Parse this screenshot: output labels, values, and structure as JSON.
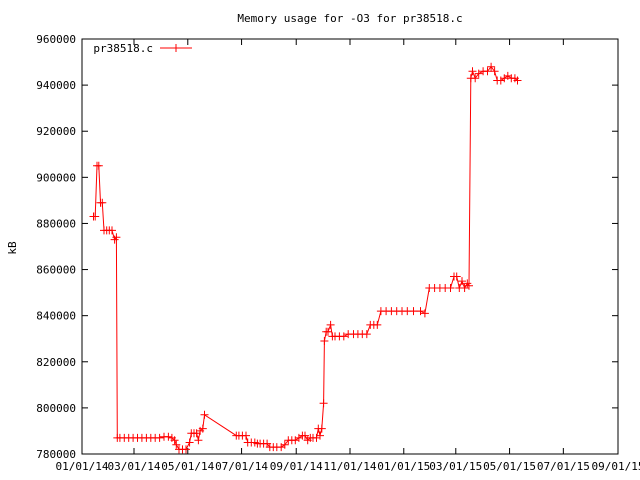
{
  "chart_data": {
    "type": "line",
    "title": "Memory usage for -O3 for pr38518.c",
    "xlabel": "",
    "ylabel": "kB",
    "ylim": [
      780000,
      960000
    ],
    "yticks": [
      780000,
      800000,
      820000,
      840000,
      860000,
      880000,
      900000,
      920000,
      940000,
      960000
    ],
    "ytick_labels": [
      "780000",
      "800000",
      "820000",
      "840000",
      "860000",
      "880000",
      "900000",
      "920000",
      "940000",
      "960000"
    ],
    "xlim": [
      "2014-01-01",
      "2015-09-01"
    ],
    "xticks": [
      "2014-01-01",
      "2014-03-01",
      "2014-05-01",
      "2014-07-01",
      "2014-09-01",
      "2014-11-01",
      "2015-01-01",
      "2015-03-01",
      "2015-05-01",
      "2015-07-01",
      "2015-09-01"
    ],
    "xtick_labels": [
      "01/01/14",
      "03/01/14",
      "05/01/14",
      "07/01/14",
      "09/01/14",
      "11/01/14",
      "01/01/15",
      "03/01/15",
      "05/01/15",
      "07/01/15",
      "09/01/15"
    ],
    "legend_position": "top-left",
    "grid": false,
    "colors": {
      "series": "#ff0000",
      "axis": "#000000",
      "background": "#ffffff"
    },
    "series": [
      {
        "name": "pr38518.c",
        "marker": "plus",
        "points": [
          [
            "2014-01-14",
            883000
          ],
          [
            "2014-01-16",
            883000
          ],
          [
            "2014-01-18",
            905000
          ],
          [
            "2014-01-20",
            905000
          ],
          [
            "2014-01-22",
            889000
          ],
          [
            "2014-01-24",
            889000
          ],
          [
            "2014-01-26",
            877000
          ],
          [
            "2014-01-29",
            877000
          ],
          [
            "2014-02-01",
            877000
          ],
          [
            "2014-02-04",
            877000
          ],
          [
            "2014-02-07",
            873000
          ],
          [
            "2014-02-09",
            874000
          ],
          [
            "2014-02-10",
            787000
          ],
          [
            "2014-02-13",
            787000
          ],
          [
            "2014-02-18",
            787000
          ],
          [
            "2014-02-23",
            787000
          ],
          [
            "2014-02-28",
            787000
          ],
          [
            "2014-03-05",
            787000
          ],
          [
            "2014-03-10",
            787000
          ],
          [
            "2014-03-15",
            787000
          ],
          [
            "2014-03-20",
            787000
          ],
          [
            "2014-03-25",
            787000
          ],
          [
            "2014-03-30",
            787000
          ],
          [
            "2014-04-04",
            787500
          ],
          [
            "2014-04-09",
            787500
          ],
          [
            "2014-04-13",
            787000
          ],
          [
            "2014-04-16",
            786000
          ],
          [
            "2014-04-18",
            784000
          ],
          [
            "2014-04-21",
            782000
          ],
          [
            "2014-04-25",
            782000
          ],
          [
            "2014-04-29",
            782000
          ],
          [
            "2014-05-03",
            785000
          ],
          [
            "2014-05-05",
            789000
          ],
          [
            "2014-05-08",
            789000
          ],
          [
            "2014-05-11",
            789000
          ],
          [
            "2014-05-13",
            786000
          ],
          [
            "2014-05-15",
            790000
          ],
          [
            "2014-05-18",
            791000
          ],
          [
            "2014-05-20",
            797000
          ],
          [
            "2014-06-25",
            788000
          ],
          [
            "2014-06-28",
            788000
          ],
          [
            "2014-07-02",
            788000
          ],
          [
            "2014-07-06",
            788000
          ],
          [
            "2014-07-08",
            785000
          ],
          [
            "2014-07-12",
            785000
          ],
          [
            "2014-07-16",
            785000
          ],
          [
            "2014-07-19",
            784500
          ],
          [
            "2014-07-22",
            784500
          ],
          [
            "2014-07-26",
            784500
          ],
          [
            "2014-07-30",
            784500
          ],
          [
            "2014-08-02",
            783000
          ],
          [
            "2014-08-06",
            783000
          ],
          [
            "2014-08-10",
            783000
          ],
          [
            "2014-08-15",
            783000
          ],
          [
            "2014-08-19",
            784000
          ],
          [
            "2014-08-23",
            786000
          ],
          [
            "2014-08-27",
            786000
          ],
          [
            "2014-08-31",
            786000
          ],
          [
            "2014-09-04",
            787000
          ],
          [
            "2014-09-08",
            788000
          ],
          [
            "2014-09-11",
            788000
          ],
          [
            "2014-09-14",
            786000
          ],
          [
            "2014-09-17",
            787000
          ],
          [
            "2014-09-20",
            787000
          ],
          [
            "2014-09-24",
            787000
          ],
          [
            "2014-09-26",
            791000
          ],
          [
            "2014-09-28",
            788000
          ],
          [
            "2014-09-30",
            791000
          ],
          [
            "2014-10-02",
            802000
          ],
          [
            "2014-10-03",
            829000
          ],
          [
            "2014-10-05",
            833000
          ],
          [
            "2014-10-07",
            833000
          ],
          [
            "2014-10-10",
            836000
          ],
          [
            "2014-10-12",
            831000
          ],
          [
            "2014-10-15",
            831000
          ],
          [
            "2014-10-20",
            831000
          ],
          [
            "2014-10-25",
            831000
          ],
          [
            "2014-10-30",
            832000
          ],
          [
            "2014-11-05",
            832000
          ],
          [
            "2014-11-10",
            832000
          ],
          [
            "2014-11-15",
            832000
          ],
          [
            "2014-11-20",
            832000
          ],
          [
            "2014-11-24",
            836000
          ],
          [
            "2014-11-28",
            836000
          ],
          [
            "2014-12-02",
            836000
          ],
          [
            "2014-12-06",
            842000
          ],
          [
            "2014-12-12",
            842000
          ],
          [
            "2014-12-18",
            842000
          ],
          [
            "2014-12-24",
            842000
          ],
          [
            "2014-12-30",
            842000
          ],
          [
            "2015-01-05",
            842000
          ],
          [
            "2015-01-12",
            842000
          ],
          [
            "2015-01-20",
            842000
          ],
          [
            "2015-01-25",
            841000
          ],
          [
            "2015-01-30",
            852000
          ],
          [
            "2015-02-05",
            852000
          ],
          [
            "2015-02-11",
            852000
          ],
          [
            "2015-02-17",
            852000
          ],
          [
            "2015-02-23",
            852000
          ],
          [
            "2015-02-27",
            857000
          ],
          [
            "2015-03-02",
            857000
          ],
          [
            "2015-03-05",
            852000
          ],
          [
            "2015-03-08",
            855000
          ],
          [
            "2015-03-11",
            852000
          ],
          [
            "2015-03-14",
            854000
          ],
          [
            "2015-03-16",
            853000
          ],
          [
            "2015-03-18",
            943000
          ],
          [
            "2015-03-20",
            946000
          ],
          [
            "2015-03-23",
            943000
          ],
          [
            "2015-03-27",
            945000
          ],
          [
            "2015-04-01",
            946000
          ],
          [
            "2015-04-06",
            946000
          ],
          [
            "2015-04-10",
            948000
          ],
          [
            "2015-04-14",
            946000
          ],
          [
            "2015-04-17",
            942000
          ],
          [
            "2015-04-21",
            942000
          ],
          [
            "2015-04-25",
            943000
          ],
          [
            "2015-04-29",
            944000
          ],
          [
            "2015-05-03",
            943000
          ],
          [
            "2015-05-07",
            943000
          ],
          [
            "2015-05-10",
            942000
          ]
        ]
      }
    ]
  }
}
